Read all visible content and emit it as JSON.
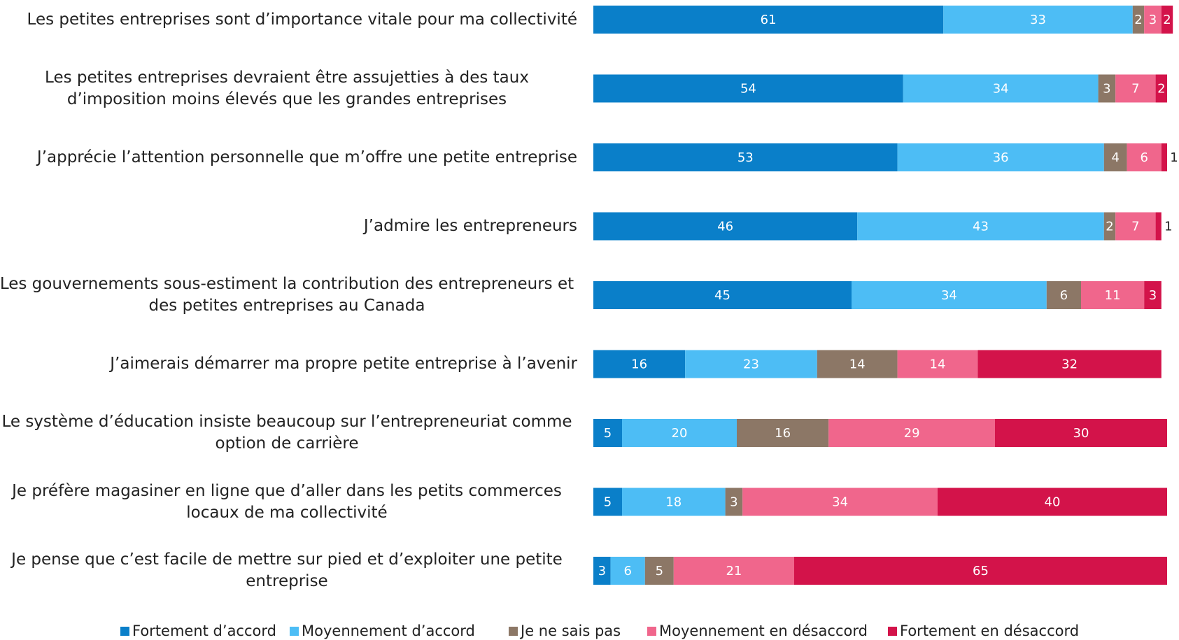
{
  "chart_data": {
    "type": "stacked-bar-horizontal",
    "categories": [
      "Les petites entreprises sont d’importance vitale pour ma collectivité",
      "Les petites entreprises devraient être assujetties à des taux d’imposition moins élevés que les grandes entreprises",
      "J’apprécie l’attention personnelle que m’offre une petite entreprise",
      "J’admire les entrepreneurs",
      "Les gouvernements sous-estiment la contribution des entrepreneurs et des petites entreprises au Canada",
      "J’aimerais démarrer ma propre petite entreprise à l’avenir",
      "Le système d’éducation insiste beaucoup sur l’entrepreneuriat comme option de carrière",
      "Je préfère magasiner en ligne que d’aller dans les petits commerces locaux de ma collectivité",
      "Je pense que c’est facile de mettre sur pied et d’exploiter une petite entreprise"
    ],
    "series": [
      {
        "name": "Fortement d’accord",
        "color": "#0a7fc9",
        "values": [
          61,
          54,
          53,
          46,
          45,
          16,
          5,
          5,
          3
        ]
      },
      {
        "name": "Moyennement d’accord",
        "color": "#4dbdf5",
        "values": [
          33,
          34,
          36,
          43,
          34,
          23,
          20,
          18,
          6
        ]
      },
      {
        "name": "Je ne sais pas",
        "color": "#8c7766",
        "values": [
          2,
          3,
          4,
          2,
          6,
          14,
          16,
          3,
          5
        ]
      },
      {
        "name": "Moyennement en désaccord",
        "color": "#f0668c",
        "values": [
          3,
          7,
          6,
          7,
          11,
          14,
          29,
          34,
          21
        ]
      },
      {
        "name": "Fortement en désaccord",
        "color": "#d3134a",
        "values": [
          2,
          2,
          1,
          1,
          3,
          32,
          30,
          40,
          65
        ]
      }
    ],
    "legend": "bottom"
  }
}
